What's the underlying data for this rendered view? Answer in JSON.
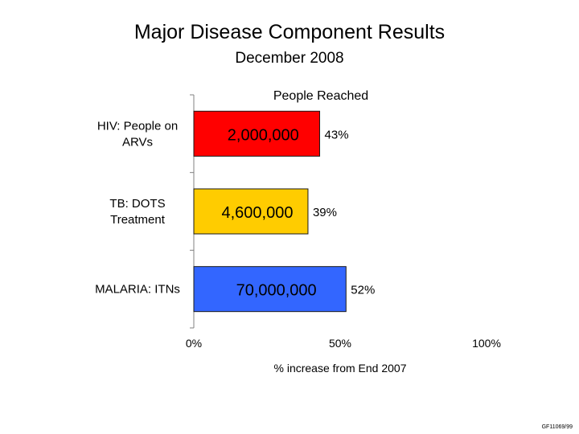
{
  "slide": {
    "title": "Major Disease Component Results",
    "subtitle": "December 2008",
    "footer_code": "GF11069/99"
  },
  "chart_data": {
    "type": "bar",
    "orientation": "horizontal",
    "title": "People Reached",
    "xlabel": "% increase from End 2007",
    "ylabel": "",
    "xlim": [
      0,
      100
    ],
    "x_ticks": [
      "0%",
      "50%",
      "100%"
    ],
    "x_tick_values": [
      0,
      50,
      100
    ],
    "categories": [
      "HIV: People on ARVs",
      "TB: DOTS Treatment",
      "MALARIA: ITNs"
    ],
    "category_label_lines": [
      [
        "HIV: People on",
        "ARVs"
      ],
      [
        "TB: DOTS",
        "Treatment"
      ],
      [
        "MALARIA: ITNs"
      ]
    ],
    "values": [
      43,
      39,
      52
    ],
    "value_labels": [
      "43%",
      "39%",
      "52%"
    ],
    "in_bar_labels": [
      "2,000,000",
      "4,600,000",
      "70,000,000"
    ],
    "colors": [
      "#ff0000",
      "#ffcc00",
      "#3366ff"
    ],
    "grid": false,
    "legend": "none"
  }
}
